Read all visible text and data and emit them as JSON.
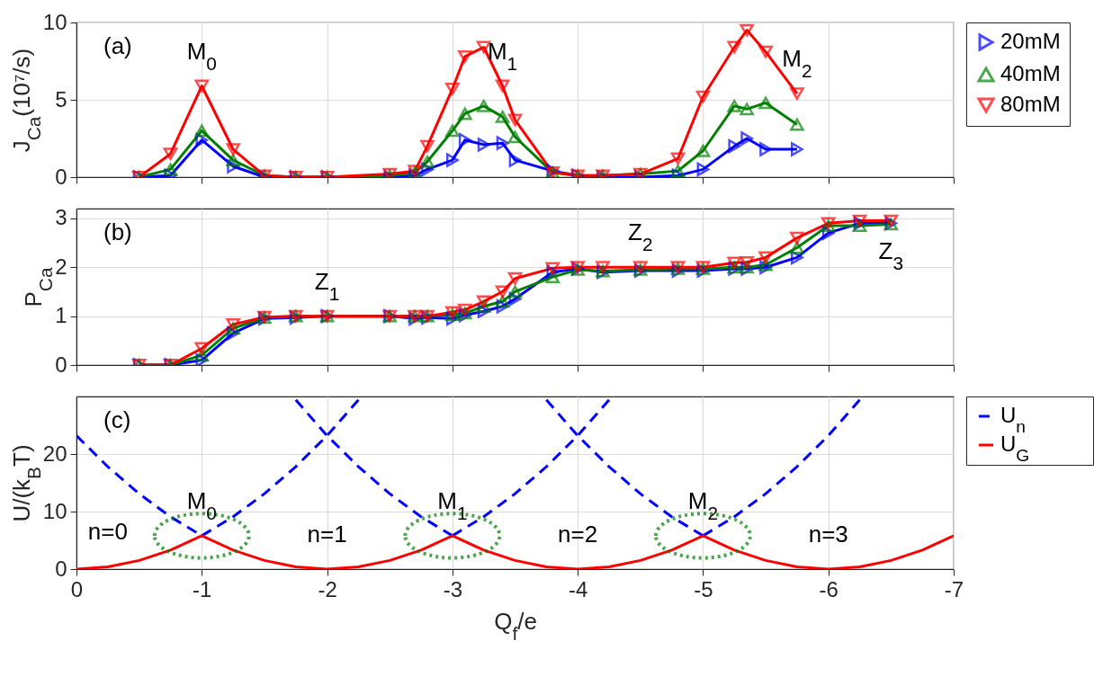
{
  "chart_data": [
    {
      "type": "line",
      "ylabel": "J$_{Ca}$(10⁷/s)",
      "xlim": [
        0,
        -7
      ],
      "xticks": [
        0,
        -1,
        -2,
        -3,
        -4,
        -5,
        -6,
        -7
      ],
      "ylim": [
        0,
        10
      ],
      "yticks": [
        0,
        5,
        10
      ],
      "grid": true,
      "legend": "right",
      "tick_labels": "y",
      "x": [
        -0.5,
        -0.75,
        -1,
        -1.25,
        -1.5,
        -1.75,
        -2,
        -2.5,
        -2.7,
        -2.8,
        -3,
        -3.1,
        -3.25,
        -3.4,
        -3.5,
        -3.8,
        -4,
        -4.2,
        -4.5,
        -4.8,
        -5,
        -5.25,
        -5.35,
        -5.5,
        -5.75
      ],
      "annotations": [
        "(a)",
        {
          "text": "M$_{0}$",
          "x": -1,
          "y": 5.9
        },
        {
          "text": "M$_{1}$",
          "x": -3.4,
          "y": 5.9
        },
        {
          "text": "M$_{2}$",
          "x": -5.75,
          "y": 5.4
        }
      ],
      "series": [
        {
          "name": "20mM",
          "color": "#0000ff",
          "marker": "triangle-right",
          "line_style": "solid",
          "values": [
            0,
            0.1,
            2.4,
            0.7,
            0,
            0,
            0,
            0,
            0.1,
            0.5,
            1.1,
            2.4,
            2.1,
            2.2,
            1.1,
            0.4,
            0.1,
            0,
            0,
            0.1,
            0.5,
            2.0,
            2.5,
            1.8,
            1.8
          ]
        },
        {
          "name": "40mM",
          "color": "#008000",
          "marker": "triangle",
          "line_style": "solid",
          "values": [
            0,
            0.5,
            3.0,
            1.1,
            0.1,
            0,
            0,
            0.1,
            0.3,
            1.0,
            3.0,
            4.1,
            4.6,
            3.9,
            2.6,
            0.3,
            0.1,
            0.1,
            0.2,
            0.4,
            1.7,
            4.6,
            4.4,
            4.8,
            3.4
          ]
        },
        {
          "name": "80mM",
          "color": "#ff0000",
          "marker": "triangle-down",
          "line_style": "solid",
          "values": [
            0,
            1.5,
            5.9,
            1.8,
            0.1,
            0,
            0,
            0.2,
            0.4,
            2.0,
            5.7,
            7.8,
            8.4,
            5.9,
            3.7,
            0.3,
            0.1,
            0.1,
            0.2,
            1.2,
            5.2,
            8.4,
            9.5,
            8.1,
            5.4
          ]
        }
      ]
    },
    {
      "type": "line",
      "ylabel": "P$_{Ca}$",
      "xlim": [
        0,
        -7
      ],
      "xticks": [
        0,
        -1,
        -2,
        -3,
        -4,
        -5,
        -6,
        -7
      ],
      "ylim": [
        0,
        3.2
      ],
      "yticks": [
        0,
        1,
        2,
        3
      ],
      "grid": true,
      "tick_labels": "y",
      "x": [
        -0.5,
        -0.75,
        -1,
        -1.25,
        -1.5,
        -1.75,
        -2,
        -2.5,
        -2.7,
        -2.8,
        -3,
        -3.1,
        -3.25,
        -3.4,
        -3.5,
        -3.8,
        -4,
        -4.2,
        -4.5,
        -4.8,
        -5,
        -5.25,
        -5.35,
        -5.5,
        -5.75,
        -6,
        -6.25,
        -6.5
      ],
      "annotations": [
        "(b)",
        {
          "text": "Z$_{1}$",
          "x": -2,
          "y": 1
        },
        {
          "text": "Z$_{2}$",
          "x": -4.5,
          "y": 2
        },
        {
          "text": "Z$_{3}$",
          "x": -6.5,
          "y": 2.9
        }
      ],
      "series": [
        {
          "color": "#0000ff",
          "marker": "triangle-right",
          "line_style": "solid",
          "values": [
            0,
            0,
            0.1,
            0.65,
            0.95,
            0.97,
            1,
            1,
            0.95,
            0.97,
            0.95,
            1.02,
            1.1,
            1.2,
            1.35,
            1.9,
            1.97,
            1.9,
            1.93,
            1.93,
            1.93,
            1.97,
            1.97,
            2.0,
            2.2,
            2.7,
            2.9,
            2.9
          ]
        },
        {
          "color": "#008000",
          "marker": "triangle",
          "line_style": "solid",
          "values": [
            0,
            0,
            0.2,
            0.75,
            0.97,
            1,
            1,
            1,
            1,
            1,
            1.03,
            1.06,
            1.2,
            1.3,
            1.5,
            1.8,
            1.95,
            1.92,
            1.95,
            1.97,
            1.97,
            2.0,
            2.0,
            2.05,
            2.4,
            2.85,
            2.85,
            2.88
          ]
        },
        {
          "color": "#ff0000",
          "marker": "triangle-down",
          "line_style": "solid",
          "values": [
            0,
            0,
            0.34,
            0.83,
            0.98,
            1,
            1,
            1,
            1,
            1,
            1.08,
            1.13,
            1.3,
            1.5,
            1.77,
            1.98,
            2,
            2,
            2,
            2,
            2,
            2.09,
            2.1,
            2.2,
            2.6,
            2.9,
            2.95,
            2.95
          ]
        }
      ]
    },
    {
      "type": "line",
      "xlabel": "Q$_{f}$/e",
      "ylabel": "U/(k$_{B}$T)",
      "xlim": [
        0,
        -7
      ],
      "xticks": [
        0,
        -1,
        -2,
        -3,
        -4,
        -5,
        -6,
        -7
      ],
      "ylim": [
        0,
        30
      ],
      "yticks": [
        0,
        10,
        20
      ],
      "grid": true,
      "legend": "right",
      "marker": "none",
      "annotations": [
        "(c)",
        {
          "text": "M$_{0}$",
          "x": -1,
          "y": 5.8
        },
        {
          "text": "M$_{1}$",
          "x": -3,
          "y": 5.8
        },
        {
          "text": "M$_{2}$",
          "x": -5,
          "y": 5.8
        },
        {
          "text": "n=0",
          "x": -0.25,
          "y": 0.4
        },
        {
          "text": "n=1",
          "x": -2,
          "y": 0
        },
        {
          "text": "n=2",
          "x": -4,
          "y": 0
        },
        {
          "text": "n=3",
          "x": -6,
          "y": 0
        }
      ],
      "series": [
        {
          "name": "U$_{n}$",
          "color": "#0000ff",
          "line_style": "dashed",
          "x": [
            0,
            -0.25,
            -0.5,
            -0.75,
            -1
          ],
          "values": [
            23.2,
            17.8,
            13.1,
            9.1,
            5.8
          ]
        },
        {
          "color": "#0000ff",
          "line_style": "dashed",
          "x": [
            -1,
            -1.25,
            -1.5,
            -1.75,
            -2,
            -2.25
          ],
          "values": [
            5.8,
            9.1,
            13.1,
            17.8,
            23.2,
            29.4
          ]
        },
        {
          "color": "#0000ff",
          "line_style": "dashed",
          "x": [
            -1.75,
            -2,
            -2.25,
            -2.5,
            -2.75,
            -3
          ],
          "values": [
            29.4,
            23.2,
            17.8,
            13.1,
            9.1,
            5.8
          ]
        },
        {
          "color": "#0000ff",
          "line_style": "dashed",
          "x": [
            -3,
            -3.25,
            -3.5,
            -3.75,
            -4,
            -4.25
          ],
          "values": [
            5.8,
            9.1,
            13.1,
            17.8,
            23.2,
            29.4
          ]
        },
        {
          "color": "#0000ff",
          "line_style": "dashed",
          "x": [
            -3.75,
            -4,
            -4.25,
            -4.5,
            -4.75,
            -5
          ],
          "values": [
            29.4,
            23.2,
            17.8,
            13.1,
            9.1,
            5.8
          ]
        },
        {
          "color": "#0000ff",
          "line_style": "dashed",
          "x": [
            -5,
            -5.25,
            -5.5,
            -5.75,
            -6,
            -6.25
          ],
          "values": [
            5.8,
            9.1,
            13.1,
            17.8,
            23.2,
            29.4
          ]
        },
        {
          "name": "U$_{G}$",
          "color": "#ff0000",
          "line_style": "solid",
          "x": [
            0,
            -0.25,
            -0.5,
            -0.75,
            -1,
            -1.25,
            -1.5,
            -1.75,
            -2,
            -2.25,
            -2.5,
            -2.75,
            -3,
            -3.25,
            -3.5,
            -3.75,
            -4,
            -4.25,
            -4.5,
            -4.75,
            -5,
            -5.25,
            -5.5,
            -5.75,
            -6,
            -6.25,
            -6.5,
            -6.75,
            -7
          ],
          "values": [
            0,
            0.4,
            1.5,
            3.3,
            5.8,
            3.3,
            1.5,
            0.4,
            0,
            0.4,
            1.5,
            3.3,
            5.8,
            3.3,
            1.5,
            0.4,
            0,
            0.4,
            1.5,
            3.3,
            5.8,
            3.3,
            1.5,
            0.4,
            0,
            0.4,
            1.5,
            3.3,
            5.8
          ]
        }
      ]
    }
  ]
}
